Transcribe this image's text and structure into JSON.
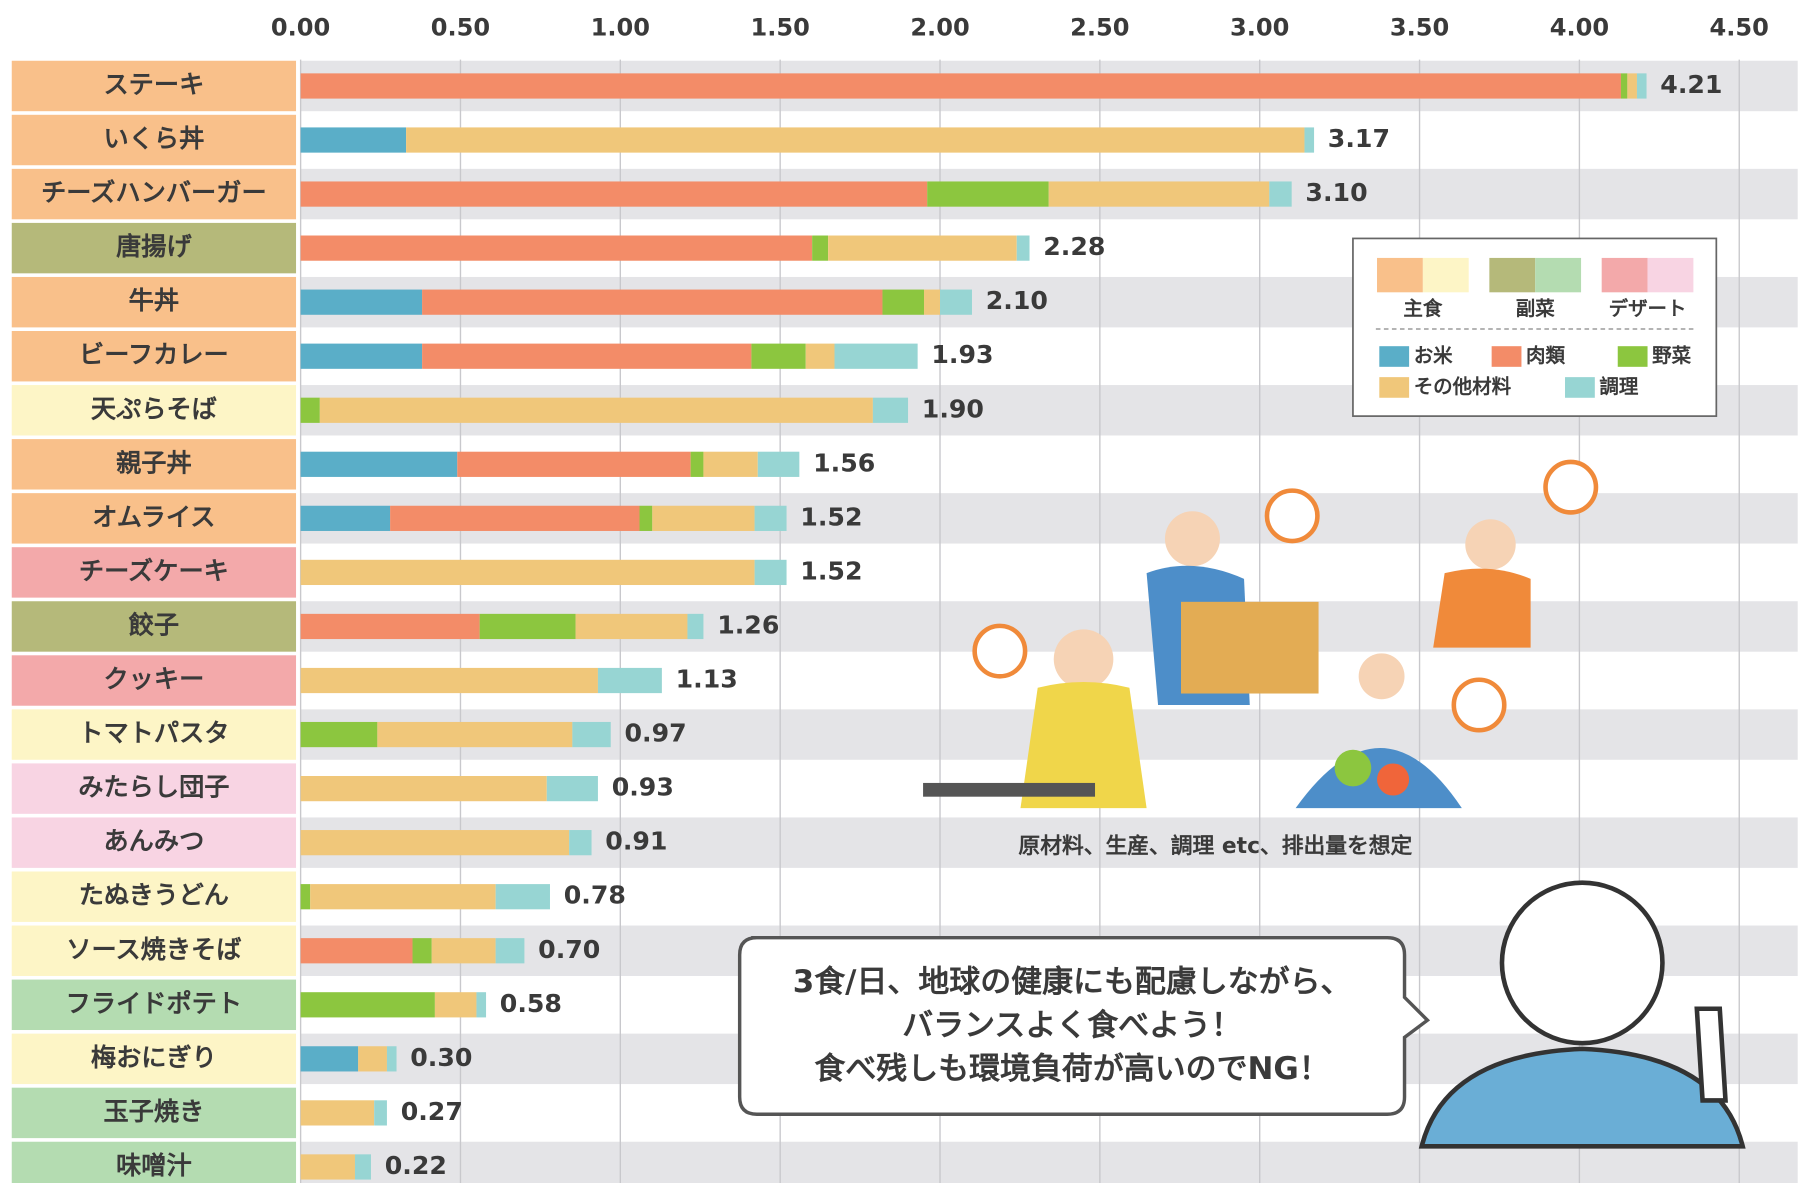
{
  "chart_data": {
    "type": "bar",
    "orientation": "horizontal",
    "stacked": true,
    "categories": [
      "ステーキ",
      "いくら丼",
      "チーズハンバーガー",
      "唐揚げ",
      "牛丼",
      "ビーフカレー",
      "天ぷらそば",
      "親子丼",
      "オムライス",
      "チーズケーキ",
      "餃子",
      "クッキー",
      "トマトパスタ",
      "みたらし団子",
      "あんみつ",
      "たぬきうどん",
      "ソース焼きそば",
      "フライドポテト",
      "梅おにぎり",
      "玉子焼き",
      "味噌汁"
    ],
    "category_colors": [
      "#f9c08a",
      "#f9c08a",
      "#f9c08a",
      "#b5b97a",
      "#f9c08a",
      "#f9c08a",
      "#fdf5c6",
      "#f9c08a",
      "#f9c08a",
      "#f3a9aa",
      "#b5b97a",
      "#f3a9aa",
      "#fdf5c6",
      "#f8d4e3",
      "#f8d4e3",
      "#fdf5c6",
      "#fdf5c6",
      "#b4dcb1",
      "#fdf5c6",
      "#b4dcb1",
      "#b4dcb1"
    ],
    "series": [
      {
        "name": "お米",
        "color": "#5aaec8",
        "values": [
          0,
          0.33,
          0,
          0,
          0.38,
          0.38,
          0,
          0.49,
          0.28,
          0,
          0,
          0,
          0,
          0,
          0,
          0,
          0,
          0,
          0.18,
          0,
          0
        ]
      },
      {
        "name": "肉類",
        "color": "#f38c68",
        "values": [
          4.13,
          0,
          1.96,
          1.6,
          1.44,
          1.03,
          0,
          0.73,
          0.78,
          0,
          0.56,
          0,
          0,
          0,
          0,
          0,
          0.35,
          0,
          0,
          0,
          0
        ]
      },
      {
        "name": "野菜",
        "color": "#8cc63f",
        "values": [
          0.02,
          0,
          0.38,
          0.05,
          0.13,
          0.17,
          0.06,
          0.04,
          0.04,
          0,
          0.3,
          0,
          0.24,
          0,
          0,
          0.03,
          0.06,
          0.42,
          0,
          0,
          0
        ]
      },
      {
        "name": "その他材料",
        "color": "#f0c77a",
        "values": [
          0.03,
          2.81,
          0.69,
          0.59,
          0.05,
          0.09,
          1.73,
          0.17,
          0.32,
          1.42,
          0.35,
          0.93,
          0.61,
          0.77,
          0.84,
          0.58,
          0.2,
          0.13,
          0.09,
          0.23,
          0.17
        ]
      },
      {
        "name": "調理",
        "color": "#97d5d3",
        "values": [
          0.03,
          0.03,
          0.07,
          0.04,
          0.1,
          0.26,
          0.11,
          0.13,
          0.1,
          0.1,
          0.05,
          0.2,
          0.12,
          0.16,
          0.07,
          0.17,
          0.09,
          0.03,
          0.03,
          0.04,
          0.05
        ]
      }
    ],
    "totals": [
      {
        "value": 4.21,
        "label": "4.21"
      },
      {
        "value": 3.17,
        "label": "3.17"
      },
      {
        "value": 3.1,
        "label": "3.10"
      },
      {
        "value": 2.28,
        "label": "2.28"
      },
      {
        "value": 2.1,
        "label": "2.10"
      },
      {
        "value": 1.93,
        "label": "1.93"
      },
      {
        "value": 1.9,
        "label": "1.90"
      },
      {
        "value": 1.56,
        "label": "1.56"
      },
      {
        "value": 1.52,
        "label": "1.52"
      },
      {
        "value": 1.52,
        "label": "1.52"
      },
      {
        "value": 1.26,
        "label": "1.26"
      },
      {
        "value": 1.13,
        "label": "1.13"
      },
      {
        "value": 0.97,
        "label": "0.97"
      },
      {
        "value": 0.93,
        "label": "0.93"
      },
      {
        "value": 0.91,
        "label": "0.91"
      },
      {
        "value": 0.78,
        "label": "0.78"
      },
      {
        "value": 0.7,
        "label": "0.70"
      },
      {
        "value": 0.58,
        "label": "0.58"
      },
      {
        "value": 0.3,
        "label": "0.30"
      },
      {
        "value": 0.27,
        "label": "0.27"
      },
      {
        "value": 0.22,
        "label": "0.22"
      }
    ],
    "xlim": [
      0,
      4.5
    ],
    "xticks": [
      {
        "value": 0,
        "label": "0.00"
      },
      {
        "value": 0.5,
        "label": "0.50"
      },
      {
        "value": 1,
        "label": "1.00"
      },
      {
        "value": 1.5,
        "label": "1.50"
      },
      {
        "value": 2,
        "label": "2.00"
      },
      {
        "value": 2.5,
        "label": "2.50"
      },
      {
        "value": 3,
        "label": "3.00"
      },
      {
        "value": 3.5,
        "label": "3.50"
      },
      {
        "value": 4,
        "label": "4.00"
      },
      {
        "value": 4.5,
        "label": "4.50"
      }
    ],
    "grid": true,
    "legend_groups": [
      {
        "name": "主食",
        "colors": [
          "#f9c08a",
          "#fdf5c6"
        ]
      },
      {
        "name": "副菜",
        "colors": [
          "#b5b97a",
          "#b4dcb1"
        ]
      },
      {
        "name": "デザート",
        "colors": [
          "#f3a9aa",
          "#f8d4e3"
        ]
      }
    ],
    "legend_position": "upper right",
    "caption": "原材料、生産、調理 etc、排出量を想定",
    "speech": [
      "3食/日、地球の健康にも配慮しながら、",
      "バランスよく食べよう！",
      "食べ残しも環境負荷が高いのでNG！"
    ]
  }
}
